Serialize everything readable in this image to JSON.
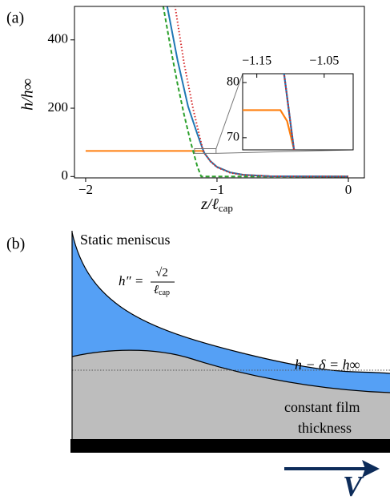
{
  "chart_data": {
    "type": "line",
    "panel_label": "(a)",
    "ylabel": "h/h∞",
    "xlabel": "z/ℓ",
    "xlabel_sub": "cap",
    "xlim": [
      -2.085,
      0.122
    ],
    "ylim": [
      -4,
      498
    ],
    "xticks": [
      {
        "value": -2,
        "label": "−2"
      },
      {
        "value": -1,
        "label": "−1"
      },
      0
    ],
    "yticks": [
      0,
      200,
      400
    ],
    "series": [
      {
        "color": "#ff7f0e",
        "style": "solid",
        "x": [
          -2,
          -1.2,
          -1.115,
          -1.105,
          -1.095,
          -1.05,
          -1.0,
          -0.9,
          -0.8,
          -0.6,
          -0.3,
          0
        ],
        "values": [
          75,
          75,
          75,
          73,
          68,
          45,
          28,
          12,
          5,
          1,
          0.3,
          0.1
        ]
      },
      {
        "color": "#2ca02c",
        "style": "dashed",
        "x": [
          -1.41,
          -1.35,
          -1.3,
          -1.25,
          -1.2,
          -1.15,
          -1.12,
          -1.0,
          0
        ],
        "values": [
          500,
          370,
          270,
          180,
          100,
          30,
          0,
          0,
          0
        ]
      },
      {
        "color": "#1f77b4",
        "style": "solid",
        "x": [
          -1.38,
          -1.3,
          -1.22,
          -1.15,
          -1.11,
          -1.095,
          -1.05,
          -1.0,
          -0.9,
          -0.8,
          -0.6,
          -0.3,
          0
        ],
        "values": [
          500,
          340,
          205,
          125,
          82,
          68,
          45,
          28,
          12,
          5,
          1,
          0.3,
          0.1
        ]
      },
      {
        "color": "#d62728",
        "style": "dotted",
        "x": [
          -1.32,
          -1.25,
          -1.18,
          -1.11,
          -1.095,
          -1.05,
          -1.0,
          -0.9,
          -0.8,
          -0.6,
          -0.3,
          0
        ],
        "values": [
          500,
          330,
          195,
          82,
          68,
          44,
          27,
          11,
          4.5,
          0.8,
          0.1,
          0
        ]
      }
    ],
    "inset": {
      "xlim": [
        -1.171,
        -1.007
      ],
      "ylim": [
        67.8,
        81.6
      ],
      "xticks": [
        {
          "value": -1.15,
          "label": "−1.15"
        },
        {
          "value": -1.05,
          "label": "−1.05"
        }
      ],
      "yticks": [
        70,
        80
      ]
    }
  },
  "diagram": {
    "panel_label": "(b)",
    "meniscus_label": "Static meniscus",
    "curvature_lhs": "h″ =",
    "curvature_numerator": "√2",
    "curvature_denominator": "ℓ",
    "curvature_denominator_sub": "cap",
    "film_equation": "h − δ = h∞",
    "film_label_line1": "constant film",
    "film_label_line2": "thickness",
    "velocity_label": "V"
  }
}
